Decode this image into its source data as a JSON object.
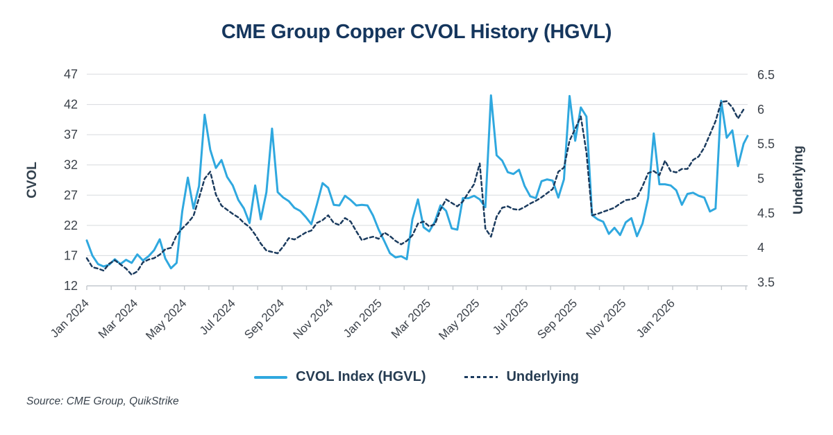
{
  "title": "CME Group Copper CVOL History (HGVL)",
  "source": "Source: CME Group, QuikStrike",
  "colors": {
    "title": "#15365d",
    "cvol_line": "#2fa8df",
    "underlying_line": "#1b3b5e",
    "grid": "#d7dadd",
    "axis": "#c3c8cd",
    "tick_text": "#3b4149",
    "axis_title_text": "#33414e",
    "background": "#ffffff"
  },
  "left_axis": {
    "title": "CVOL",
    "ticks": [
      47,
      42,
      37,
      32,
      27,
      22,
      17,
      12
    ],
    "min": 12,
    "max": 47
  },
  "right_axis": {
    "title": "Underlying",
    "ticks": [
      "6.5",
      "6",
      "5.5",
      "5",
      "4.5",
      "4",
      "3.5"
    ],
    "tick_values": [
      6.5,
      6.0,
      5.5,
      5.0,
      4.5,
      4.0,
      3.5
    ],
    "min": 3.5,
    "max": 6.5
  },
  "x_axis": {
    "labels": [
      "Jan 2024",
      "Mar 2024",
      "May 2024",
      "Jul 2024",
      "Sep 2024",
      "Nov 2024",
      "Jan 2025",
      "Mar 2025",
      "May 2025",
      "Jul 2025",
      "Sep 2025",
      "Nov 2025",
      "Jan 2026"
    ],
    "label_every_n_months": 2,
    "minor_tick_every": "month",
    "months_shown": 27
  },
  "legend": {
    "items": [
      {
        "label": "CVOL Index (HGVL)",
        "style": "solid",
        "color": "#2fa8df"
      },
      {
        "label": "Underlying",
        "style": "dashed",
        "color": "#1b3b5e"
      }
    ]
  },
  "chart_data": {
    "type": "line",
    "title": "CME Group Copper CVOL History (HGVL)",
    "grid": "horizontal",
    "legend_position": "bottom",
    "x_start": "2024-01-01",
    "cadence_days": 7,
    "x_tick_labels": [
      "Jan 2024",
      "Mar 2024",
      "May 2024",
      "Jul 2024",
      "Sep 2024",
      "Nov 2024",
      "Jan 2025",
      "Mar 2025",
      "May 2025",
      "Jul 2025",
      "Sep 2025",
      "Nov 2025",
      "Jan 2026"
    ],
    "series": [
      {
        "name": "CVOL Index (HGVL)",
        "axis": "left",
        "style": "solid",
        "color": "#2fa8df",
        "ylim": [
          12,
          47
        ],
        "values": [
          19.5,
          17.0,
          15.6,
          15.2,
          15.5,
          16.4,
          15.6,
          16.3,
          15.8,
          17.2,
          16.2,
          16.9,
          17.9,
          19.7,
          16.5,
          14.9,
          15.8,
          24.3,
          29.9,
          24.8,
          28.5,
          40.3,
          34.5,
          31.5,
          32.8,
          30.0,
          28.6,
          26.2,
          24.8,
          22.4,
          28.6,
          23.0,
          27.5,
          38.0,
          27.5,
          26.6,
          26.0,
          24.9,
          24.4,
          23.4,
          22.2,
          25.5,
          29.0,
          28.2,
          25.4,
          25.3,
          26.9,
          26.2,
          25.3,
          25.4,
          25.3,
          23.6,
          21.3,
          19.4,
          17.4,
          16.7,
          16.9,
          16.4,
          23.0,
          26.3,
          21.7,
          21.0,
          22.6,
          25.3,
          24.4,
          21.5,
          21.3,
          26.5,
          26.5,
          26.9,
          26.3,
          25.0,
          43.5,
          33.6,
          32.7,
          30.8,
          30.5,
          31.2,
          28.5,
          26.8,
          26.5,
          29.3,
          29.6,
          29.4,
          26.6,
          29.6,
          43.4,
          36.0,
          41.5,
          40.0,
          23.7,
          23.0,
          22.6,
          20.6,
          21.6,
          20.4,
          22.5,
          23.2,
          20.2,
          22.3,
          26.5,
          37.2,
          28.8,
          28.8,
          28.6,
          27.8,
          25.4,
          27.2,
          27.4,
          26.9,
          26.6,
          24.3,
          24.8,
          42.6,
          36.5,
          37.7,
          31.8,
          35.5,
          36.8
        ]
      },
      {
        "name": "Underlying",
        "axis": "right",
        "style": "dashed",
        "color": "#1b3b5e",
        "ylim": [
          3.5,
          6.5
        ],
        "values": [
          3.85,
          3.72,
          3.7,
          3.67,
          3.77,
          3.82,
          3.76,
          3.7,
          3.61,
          3.66,
          3.79,
          3.83,
          3.85,
          3.9,
          3.98,
          4.0,
          4.18,
          4.28,
          4.36,
          4.46,
          4.72,
          5.0,
          5.1,
          4.77,
          4.61,
          4.55,
          4.49,
          4.44,
          4.36,
          4.3,
          4.19,
          4.06,
          3.96,
          3.94,
          3.92,
          4.02,
          4.14,
          4.12,
          4.17,
          4.22,
          4.25,
          4.36,
          4.4,
          4.47,
          4.36,
          4.33,
          4.43,
          4.38,
          4.24,
          4.11,
          4.14,
          4.16,
          4.13,
          4.22,
          4.17,
          4.1,
          4.05,
          4.1,
          4.18,
          4.35,
          4.38,
          4.31,
          4.34,
          4.55,
          4.7,
          4.65,
          4.6,
          4.67,
          4.8,
          4.92,
          5.22,
          4.28,
          4.16,
          4.45,
          4.58,
          4.6,
          4.56,
          4.55,
          4.59,
          4.64,
          4.68,
          4.73,
          4.79,
          4.85,
          5.1,
          5.16,
          5.55,
          5.72,
          5.9,
          5.38,
          4.47,
          4.49,
          4.52,
          4.55,
          4.58,
          4.64,
          4.69,
          4.7,
          4.73,
          4.89,
          5.08,
          5.11,
          5.05,
          5.26,
          5.11,
          5.09,
          5.14,
          5.14,
          5.27,
          5.32,
          5.45,
          5.64,
          5.83,
          6.11,
          6.12,
          6.03,
          5.87,
          6.0,
          null
        ]
      }
    ]
  }
}
